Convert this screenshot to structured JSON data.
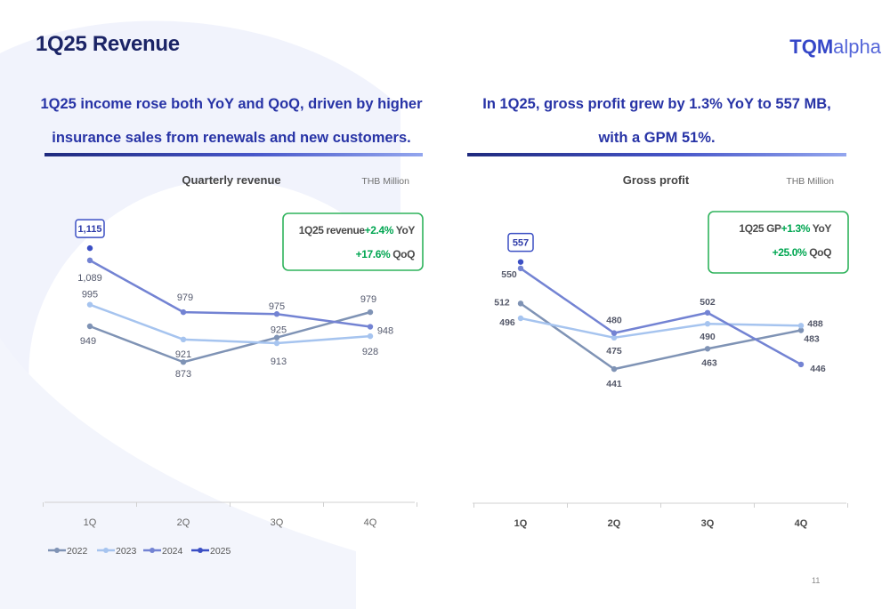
{
  "page": {
    "title": "1Q25 Revenue",
    "logo": {
      "strong": "TQM",
      "light": "alpha"
    },
    "page_number": "11",
    "colors": {
      "primary": "#1b2466",
      "accent": "#2733a6",
      "box_border": "#2fb35c",
      "growth_green": "#00a651"
    }
  },
  "left_panel": {
    "headline_lines": [
      "1Q25 income rose both YoY and QoQ, driven by higher",
      "insurance sales from renewals and new customers."
    ]
  },
  "right_panel": {
    "headline_lines": [
      "In 1Q25, gross profit grew by 1.3% YoY to 557 MB,",
      "with a GPM 51%."
    ]
  },
  "chart_data": [
    {
      "type": "line",
      "title": "Quarterly revenue",
      "unit": "THB Million",
      "categories": [
        "1Q",
        "2Q",
        "3Q",
        "4Q"
      ],
      "series": [
        {
          "name": "2022",
          "color": "#7f93b5",
          "values": [
            949,
            873,
            925,
            979
          ]
        },
        {
          "name": "2023",
          "color": "#a6c4ef",
          "values": [
            995,
            921,
            913,
            928
          ]
        },
        {
          "name": "2024",
          "color": "#7383d3",
          "values": [
            1089,
            979,
            975,
            948
          ]
        },
        {
          "name": "2025",
          "color": "#3b4fc4",
          "values": [
            1115,
            null,
            null,
            null
          ]
        }
      ],
      "ylim": [
        660,
        1170
      ],
      "highlight_label": "1,115",
      "callout": {
        "line1_label": "1Q25 revenue",
        "line1_value": "+2.4%",
        "line1_unit": "YoY",
        "line2_value": "+17.6%",
        "line2_unit": "QoQ"
      },
      "legend": true,
      "legend_position": "bottom-left",
      "grid": false
    },
    {
      "type": "line",
      "title": "Gross profit",
      "unit": "THB Million",
      "categories": [
        "1Q",
        "2Q",
        "3Q",
        "4Q"
      ],
      "series": [
        {
          "name": "2022",
          "color": "#7f93b5",
          "values": [
            512,
            441,
            463,
            483
          ]
        },
        {
          "name": "2023",
          "color": "#a6c4ef",
          "values": [
            496,
            475,
            490,
            488
          ]
        },
        {
          "name": "2024",
          "color": "#7383d3",
          "values": [
            550,
            480,
            502,
            446
          ]
        },
        {
          "name": "2025",
          "color": "#3b4fc4",
          "values": [
            557,
            null,
            null,
            null
          ]
        }
      ],
      "ylim": [
        340,
        600
      ],
      "highlight_label": "557",
      "callout": {
        "line1_label": "1Q25 GP",
        "line1_value": "+1.3%",
        "line1_unit": "YoY",
        "line2_value": "+25.0%",
        "line2_unit": "QoQ"
      },
      "legend": false,
      "grid": false
    }
  ]
}
